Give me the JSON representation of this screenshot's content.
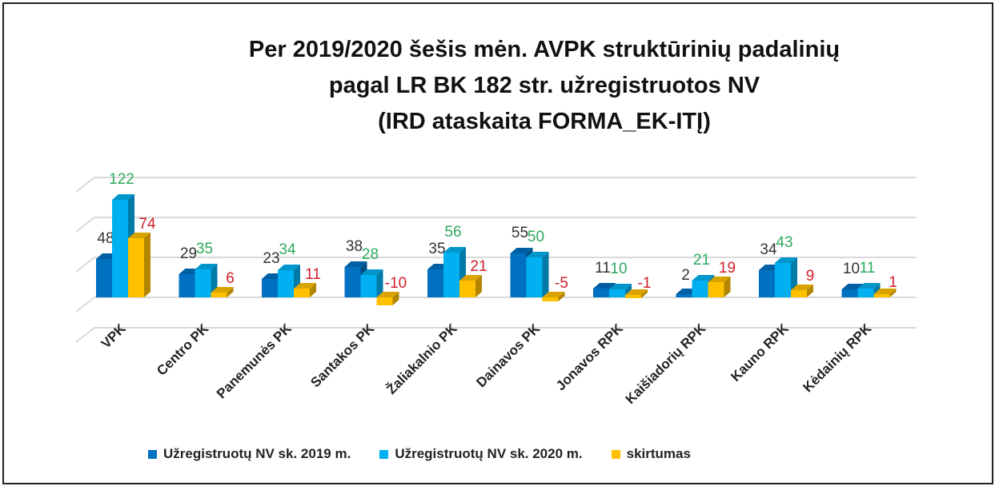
{
  "chart_data": {
    "type": "bar",
    "title": [
      "Per 2019/2020 šešis mėn. AVPK struktūrinių padalinių",
      "pagal LR BK 182 str. užregistruotos NV",
      "(IRD ataskaita FORMA_EK-ITĮ)"
    ],
    "categories": [
      "VPK",
      "Centro PK",
      "Panemunės PK",
      "Santakos PK",
      "Žaliakalnio PK",
      "Dainavos PK",
      "Jonavos RPK",
      "Kaišiadorių RPK",
      "Kauno RPK",
      "Kėdainių RPK"
    ],
    "series": [
      {
        "name": "Užregistruotų NV sk. 2019 m.",
        "color": "#0070c0",
        "label_color": "#333333",
        "values": [
          48,
          29,
          23,
          38,
          35,
          55,
          11,
          2,
          34,
          10
        ]
      },
      {
        "name": "Užregistruotų NV sk. 2020 m.",
        "color": "#00b0f0",
        "label_color": "#2eaa5e",
        "values": [
          122,
          35,
          34,
          28,
          56,
          50,
          10,
          21,
          43,
          11
        ]
      },
      {
        "name": "skirtumas",
        "color": "#ffc000",
        "label_color": "#d0202a",
        "values": [
          74,
          6,
          11,
          -10,
          21,
          -5,
          -1,
          19,
          9,
          1
        ]
      }
    ],
    "ylim": [
      -50,
      150
    ],
    "grid": true,
    "legend": "bottom"
  }
}
